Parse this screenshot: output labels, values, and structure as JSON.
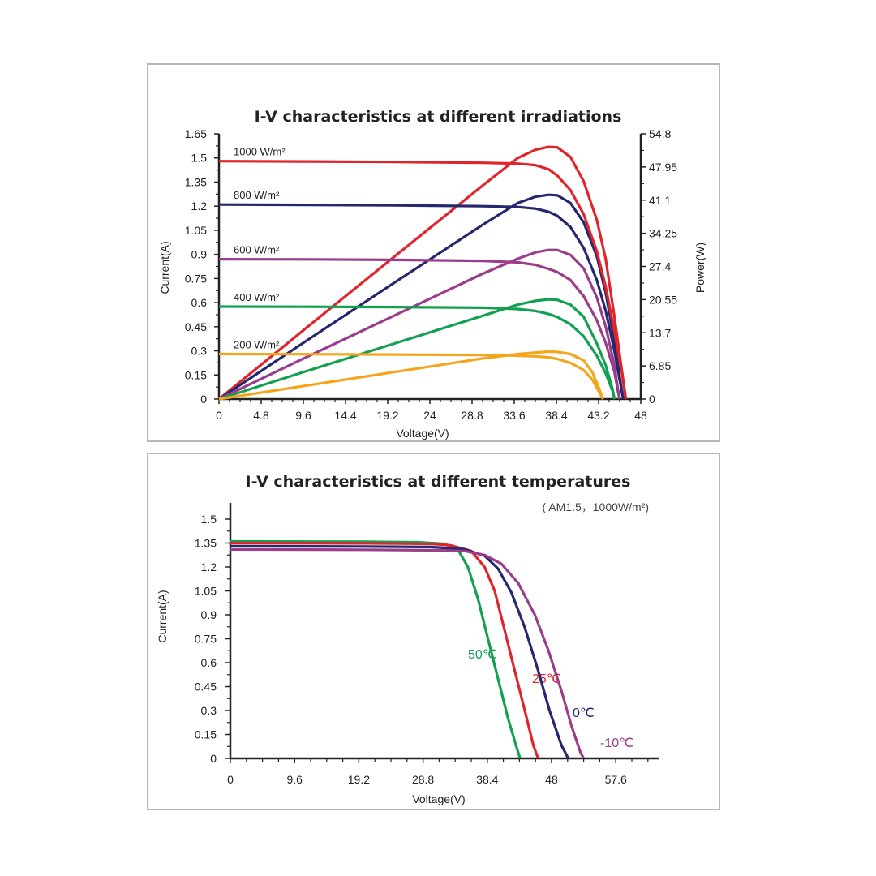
{
  "colors": {
    "red": "#e0242c",
    "navy": "#26286f",
    "purple": "#9a3e8c",
    "green": "#13a051",
    "orange": "#f4a51c",
    "axis": "#222222",
    "frame": "#b7b7b7"
  },
  "chart_data": [
    {
      "type": "line",
      "title": "I-V characteristics at different irradiations",
      "xlabel": "Voltage(V)",
      "ylabel": "Current(A)",
      "y2label": "Power(W)",
      "xlim": [
        0,
        48
      ],
      "ylim": [
        0,
        1.65
      ],
      "y2lim": [
        0,
        54.8
      ],
      "x_ticks": [
        "0",
        "4.8",
        "9.6",
        "14.4",
        "19.2",
        "24",
        "28.8",
        "33.6",
        "38.4",
        "43.2",
        "48"
      ],
      "y_ticks": [
        "0",
        "0.15",
        "0.3",
        "0.45",
        "0.6",
        "0.75",
        "0.9",
        "1.05",
        "1.2",
        "1.35",
        "1.5",
        "1.65"
      ],
      "y2_ticks": [
        "0",
        "6.85",
        "13.7",
        "20.55",
        "27.4",
        "34.25",
        "41.1",
        "47.95",
        "54.8"
      ],
      "grid": false,
      "series": [
        {
          "name": "1000 W/m²",
          "color": "#e0242c",
          "iv": [
            [
              0,
              1.48
            ],
            [
              10,
              1.478
            ],
            [
              20,
              1.475
            ],
            [
              30,
              1.47
            ],
            [
              34,
              1.465
            ],
            [
              36,
              1.455
            ],
            [
              37.5,
              1.43
            ],
            [
              38.5,
              1.39
            ],
            [
              40,
              1.3
            ],
            [
              41.5,
              1.15
            ],
            [
              43,
              0.92
            ],
            [
              44,
              0.7
            ],
            [
              45,
              0.42
            ],
            [
              45.8,
              0.18
            ],
            [
              46.3,
              0
            ]
          ],
          "pv": [
            [
              0,
              0
            ],
            [
              10,
              14.8
            ],
            [
              20,
              29.5
            ],
            [
              30,
              44.1
            ],
            [
              34,
              49.8
            ],
            [
              36,
              51.5
            ],
            [
              37.5,
              52.1
            ],
            [
              38.5,
              52.0
            ],
            [
              40,
              50.0
            ],
            [
              41.5,
              45.0
            ],
            [
              43,
              37.0
            ],
            [
              44,
              29.0
            ],
            [
              45,
              17.0
            ],
            [
              45.8,
              6.5
            ],
            [
              46.3,
              0
            ]
          ]
        },
        {
          "name": "800 W/m²",
          "color": "#26286f",
          "iv": [
            [
              0,
              1.21
            ],
            [
              10,
              1.208
            ],
            [
              20,
              1.205
            ],
            [
              30,
              1.2
            ],
            [
              34,
              1.195
            ],
            [
              36,
              1.185
            ],
            [
              37.5,
              1.165
            ],
            [
              38.5,
              1.14
            ],
            [
              40,
              1.07
            ],
            [
              41.5,
              0.94
            ],
            [
              43,
              0.74
            ],
            [
              44,
              0.55
            ],
            [
              45,
              0.3
            ],
            [
              45.6,
              0.12
            ],
            [
              46.0,
              0
            ]
          ],
          "pv": [
            [
              0,
              0
            ],
            [
              10,
              12.1
            ],
            [
              20,
              24.1
            ],
            [
              30,
              36.0
            ],
            [
              34,
              40.5
            ],
            [
              36,
              41.8
            ],
            [
              37.5,
              42.2
            ],
            [
              38.5,
              42.1
            ],
            [
              40,
              40.5
            ],
            [
              41.5,
              36.5
            ],
            [
              43,
              29.5
            ],
            [
              44,
              22.0
            ],
            [
              45,
              12.0
            ],
            [
              45.6,
              4.5
            ],
            [
              46.0,
              0
            ]
          ]
        },
        {
          "name": "600 W/m²",
          "color": "#9a3e8c",
          "iv": [
            [
              0,
              0.87
            ],
            [
              10,
              0.869
            ],
            [
              20,
              0.866
            ],
            [
              30,
              0.86
            ],
            [
              34,
              0.85
            ],
            [
              36,
              0.835
            ],
            [
              37.5,
              0.81
            ],
            [
              38.5,
              0.79
            ],
            [
              40,
              0.74
            ],
            [
              41.5,
              0.64
            ],
            [
              43,
              0.49
            ],
            [
              44,
              0.35
            ],
            [
              45,
              0.17
            ],
            [
              45.4,
              0.05
            ],
            [
              45.6,
              0
            ]
          ],
          "pv": [
            [
              0,
              0
            ],
            [
              10,
              8.7
            ],
            [
              20,
              17.3
            ],
            [
              30,
              25.9
            ],
            [
              34,
              29.0
            ],
            [
              36,
              30.3
            ],
            [
              37.5,
              30.8
            ],
            [
              38.5,
              30.8
            ],
            [
              40,
              29.8
            ],
            [
              41.5,
              27.0
            ],
            [
              43,
              21.0
            ],
            [
              44,
              15.0
            ],
            [
              45,
              7.0
            ],
            [
              45.4,
              2.0
            ],
            [
              45.6,
              0
            ]
          ]
        },
        {
          "name": "400 W/m²",
          "color": "#13a051",
          "iv": [
            [
              0,
              0.575
            ],
            [
              10,
              0.574
            ],
            [
              20,
              0.572
            ],
            [
              30,
              0.568
            ],
            [
              34,
              0.56
            ],
            [
              36,
              0.548
            ],
            [
              37.5,
              0.53
            ],
            [
              38.5,
              0.51
            ],
            [
              40,
              0.465
            ],
            [
              41.5,
              0.39
            ],
            [
              43,
              0.27
            ],
            [
              44,
              0.16
            ],
            [
              44.8,
              0.05
            ],
            [
              45.0,
              0
            ]
          ],
          "pv": [
            [
              0,
              0
            ],
            [
              10,
              5.8
            ],
            [
              20,
              11.5
            ],
            [
              30,
              17.2
            ],
            [
              34,
              19.5
            ],
            [
              36,
              20.3
            ],
            [
              37.5,
              20.6
            ],
            [
              38.5,
              20.5
            ],
            [
              40,
              19.5
            ],
            [
              41.5,
              17.0
            ],
            [
              43,
              11.5
            ],
            [
              44,
              7.0
            ],
            [
              44.8,
              2.0
            ],
            [
              45.0,
              0
            ]
          ]
        },
        {
          "name": "200 W/m²",
          "color": "#f4a51c",
          "iv": [
            [
              0,
              0.28
            ],
            [
              10,
              0.279
            ],
            [
              20,
              0.277
            ],
            [
              30,
              0.274
            ],
            [
              34,
              0.27
            ],
            [
              36,
              0.266
            ],
            [
              37.5,
              0.26
            ],
            [
              38.5,
              0.25
            ],
            [
              40,
              0.225
            ],
            [
              41.5,
              0.18
            ],
            [
              42.5,
              0.12
            ],
            [
              43.2,
              0.05
            ],
            [
              43.7,
              0
            ]
          ],
          "pv": [
            [
              0,
              0
            ],
            [
              10,
              2.8
            ],
            [
              20,
              5.6
            ],
            [
              30,
              8.4
            ],
            [
              34,
              9.3
            ],
            [
              36,
              9.6
            ],
            [
              37.5,
              9.8
            ],
            [
              38.5,
              9.75
            ],
            [
              40,
              9.3
            ],
            [
              41.5,
              8.0
            ],
            [
              42.5,
              5.5
            ],
            [
              43.2,
              2.5
            ],
            [
              43.7,
              0
            ]
          ]
        }
      ]
    },
    {
      "type": "line",
      "title": "I-V characteristics at different temperatures",
      "subtitle": "( AM1.5，1000W/m²)",
      "xlabel": "Voltage(V)",
      "ylabel": "Current(A)",
      "xlim": [
        0,
        64
      ],
      "ylim": [
        0,
        1.5
      ],
      "x_ticks": [
        "0",
        "9.6",
        "19.2",
        "28.8",
        "38.4",
        "48",
        "57.6"
      ],
      "y_ticks": [
        "0",
        "0.15",
        "0.3",
        "0.45",
        "0.6",
        "0.75",
        "0.9",
        "1.05",
        "1.2",
        "1.35",
        "1.5"
      ],
      "grid": false,
      "series": [
        {
          "name": "50℃",
          "color": "#13a051",
          "iv": [
            [
              0,
              1.36
            ],
            [
              20,
              1.358
            ],
            [
              28,
              1.355
            ],
            [
              32,
              1.345
            ],
            [
              34,
              1.31
            ],
            [
              35.5,
              1.2
            ],
            [
              37,
              1.0
            ],
            [
              38.5,
              0.75
            ],
            [
              40,
              0.5
            ],
            [
              41.5,
              0.25
            ],
            [
              42.7,
              0.08
            ],
            [
              43.3,
              0
            ]
          ]
        },
        {
          "name": "25℃",
          "color": "#e0242c",
          "iv": [
            [
              0,
              1.35
            ],
            [
              20,
              1.348
            ],
            [
              30,
              1.345
            ],
            [
              33,
              1.335
            ],
            [
              36,
              1.3
            ],
            [
              38,
              1.2
            ],
            [
              39.5,
              1.05
            ],
            [
              41,
              0.8
            ],
            [
              42.5,
              0.55
            ],
            [
              44,
              0.3
            ],
            [
              45.3,
              0.08
            ],
            [
              46,
              0
            ]
          ]
        },
        {
          "name": "0℃",
          "color": "#26286f",
          "iv": [
            [
              0,
              1.33
            ],
            [
              20,
              1.328
            ],
            [
              30,
              1.325
            ],
            [
              35,
              1.31
            ],
            [
              38,
              1.27
            ],
            [
              40,
              1.19
            ],
            [
              42,
              1.04
            ],
            [
              44,
              0.82
            ],
            [
              46,
              0.55
            ],
            [
              47.7,
              0.3
            ],
            [
              49.5,
              0.08
            ],
            [
              50.5,
              0
            ]
          ]
        },
        {
          "name": "-10℃",
          "color": "#9a3e8c",
          "iv": [
            [
              0,
              1.31
            ],
            [
              20,
              1.308
            ],
            [
              30,
              1.305
            ],
            [
              35,
              1.3
            ],
            [
              38,
              1.275
            ],
            [
              40.5,
              1.22
            ],
            [
              43,
              1.1
            ],
            [
              45.5,
              0.9
            ],
            [
              47.5,
              0.68
            ],
            [
              49.5,
              0.42
            ],
            [
              51,
              0.2
            ],
            [
              52.3,
              0.04
            ],
            [
              52.8,
              0
            ]
          ]
        }
      ]
    }
  ]
}
